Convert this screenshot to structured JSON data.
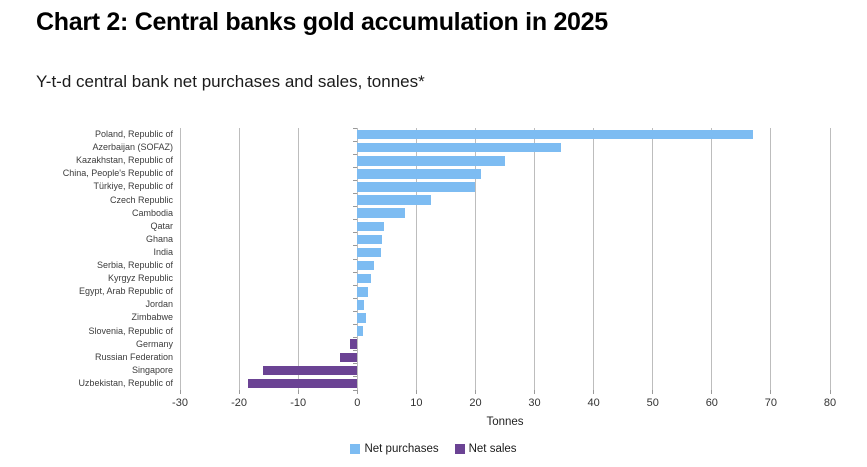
{
  "chart_data": {
    "type": "bar",
    "orientation": "horizontal",
    "title": "Chart 2: Central banks gold accumulation in 2025",
    "subtitle": "Y-t-d central bank net purchases and sales, tonnes*",
    "xlabel": "Tonnes",
    "xlim": [
      -30,
      80
    ],
    "xticks": [
      -30,
      -20,
      -10,
      0,
      10,
      20,
      30,
      40,
      50,
      60,
      70,
      80
    ],
    "grid": "vertical-only",
    "legend_position": "bottom-center",
    "categories": [
      "Poland, Republic of",
      "Azerbaijan (SOFAZ)",
      "Kazakhstan, Republic of",
      "China, People's Republic of",
      "Türkiye, Republic of",
      "Czech Republic",
      "Cambodia",
      "Qatar",
      "Ghana",
      "India",
      "Serbia, Republic of",
      "Kyrgyz Republic",
      "Egypt, Arab Republic of",
      "Jordan",
      "Zimbabwe",
      "Slovenia, Republic of",
      "Germany",
      "Russian Federation",
      "Singapore",
      "Uzbekistan, Republic of"
    ],
    "values": [
      67,
      34.5,
      25,
      21,
      20,
      12.5,
      8,
      4.6,
      4.2,
      4.0,
      2.8,
      2.4,
      1.9,
      1.2,
      1.4,
      0.9,
      -1.2,
      -3,
      -16,
      -18.5
    ],
    "legend": [
      {
        "label": "Net purchases",
        "color": "#7dbcf2"
      },
      {
        "label": "Net sales",
        "color": "#6b4394"
      }
    ],
    "colors": {
      "net_purchases": "#7dbcf2",
      "net_sales": "#6b4394",
      "gridline": "#bdbdbd",
      "tick": "#9a9a9a"
    }
  }
}
